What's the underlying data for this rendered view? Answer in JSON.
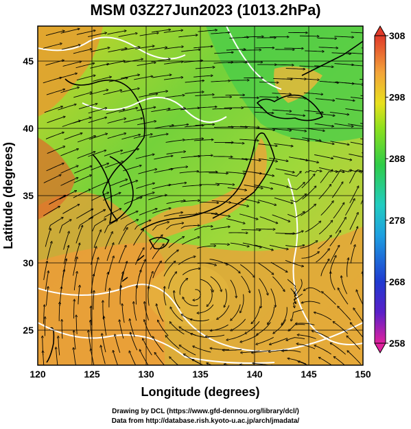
{
  "title": "MSM 03Z27Jun2023 (1013.2hPa)",
  "map": {
    "x_axis": {
      "label": "Longitude (degrees)",
      "ticks": [
        120,
        125,
        130,
        135,
        140,
        145,
        150
      ],
      "range": [
        120,
        150
      ]
    },
    "y_axis": {
      "label": "Latitude  (degrees)",
      "ticks": [
        25,
        30,
        35,
        40,
        45
      ],
      "range": [
        22.4,
        47.6
      ]
    },
    "grid_lines": "every 5 degrees",
    "vortex_center": {
      "lon": 134.2,
      "lat": 27.8
    }
  },
  "colorbar": {
    "ticks": [
      "308",
      "298",
      "288",
      "278",
      "268",
      "258"
    ],
    "min": 258,
    "max": 308,
    "colors": [
      "#e0229e",
      "#5a1fc8",
      "#1f3ad0",
      "#1e9fe0",
      "#22ccc0",
      "#2fcc48",
      "#8ee01e",
      "#e8e01e",
      "#f3a43a",
      "#f07838",
      "#e03a2a"
    ]
  },
  "footer": {
    "line1": "Drawing by DCL (https://www.gfd-dennou.org/library/dcl/)",
    "line2": "Data from http://database.rish.kyoto-u.ac.jp/arch/jmadata/"
  }
}
